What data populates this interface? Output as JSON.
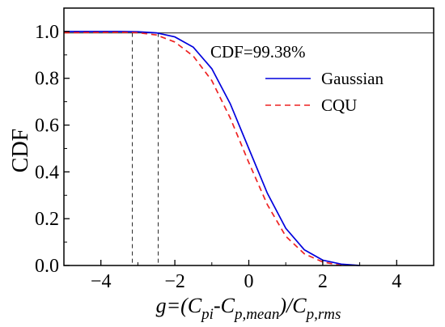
{
  "chart_data": {
    "type": "line",
    "title": "",
    "ylabel": "CDF",
    "xlabel": "g=(Cpi-Cp,mean)/Cp,rms",
    "xlim": [
      -5,
      5
    ],
    "ylim": [
      0,
      1.1
    ],
    "x_ticks": [
      -4,
      -2,
      0,
      2,
      4
    ],
    "x_tick_labels": [
      "−4",
      "−2",
      "0",
      "2",
      "4"
    ],
    "y_ticks": [
      0.0,
      0.2,
      0.4,
      0.6,
      0.8,
      1.0
    ],
    "y_tick_labels": [
      "0.0",
      "0.2",
      "0.4",
      "0.6",
      "0.8",
      "1.0"
    ],
    "grid": false,
    "legend_position": "right",
    "series": [
      {
        "name": "Gaussian",
        "color": "#0000dd",
        "dash": "solid",
        "points": [
          [
            -5,
            1.0
          ],
          [
            -3.5,
            1.0
          ],
          [
            -3,
            0.999
          ],
          [
            -2.5,
            0.994
          ],
          [
            -2,
            0.977
          ],
          [
            -1.5,
            0.933
          ],
          [
            -1,
            0.841
          ],
          [
            -0.5,
            0.691
          ],
          [
            0,
            0.5
          ],
          [
            0.5,
            0.309
          ],
          [
            1,
            0.159
          ],
          [
            1.5,
            0.067
          ],
          [
            2,
            0.023
          ],
          [
            2.5,
            0.006
          ],
          [
            3,
            0.0
          ]
        ]
      },
      {
        "name": "CQU",
        "color": "#ee2222",
        "dash": "dashed",
        "points": [
          [
            -5,
            0.995
          ],
          [
            -3.5,
            0.997
          ],
          [
            -3,
            0.995
          ],
          [
            -2.5,
            0.985
          ],
          [
            -2,
            0.955
          ],
          [
            -1.5,
            0.895
          ],
          [
            -1,
            0.79
          ],
          [
            -0.5,
            0.63
          ],
          [
            0,
            0.44
          ],
          [
            0.5,
            0.26
          ],
          [
            1,
            0.125
          ],
          [
            1.5,
            0.05
          ],
          [
            2,
            0.015
          ],
          [
            2.5,
            0.0
          ]
        ]
      }
    ],
    "annotations": [
      {
        "text": "CDF=99.38%"
      }
    ],
    "reference_lines": {
      "horizontal_y": 0.994,
      "vertical_x": [
        -3.15,
        -2.45
      ]
    }
  }
}
